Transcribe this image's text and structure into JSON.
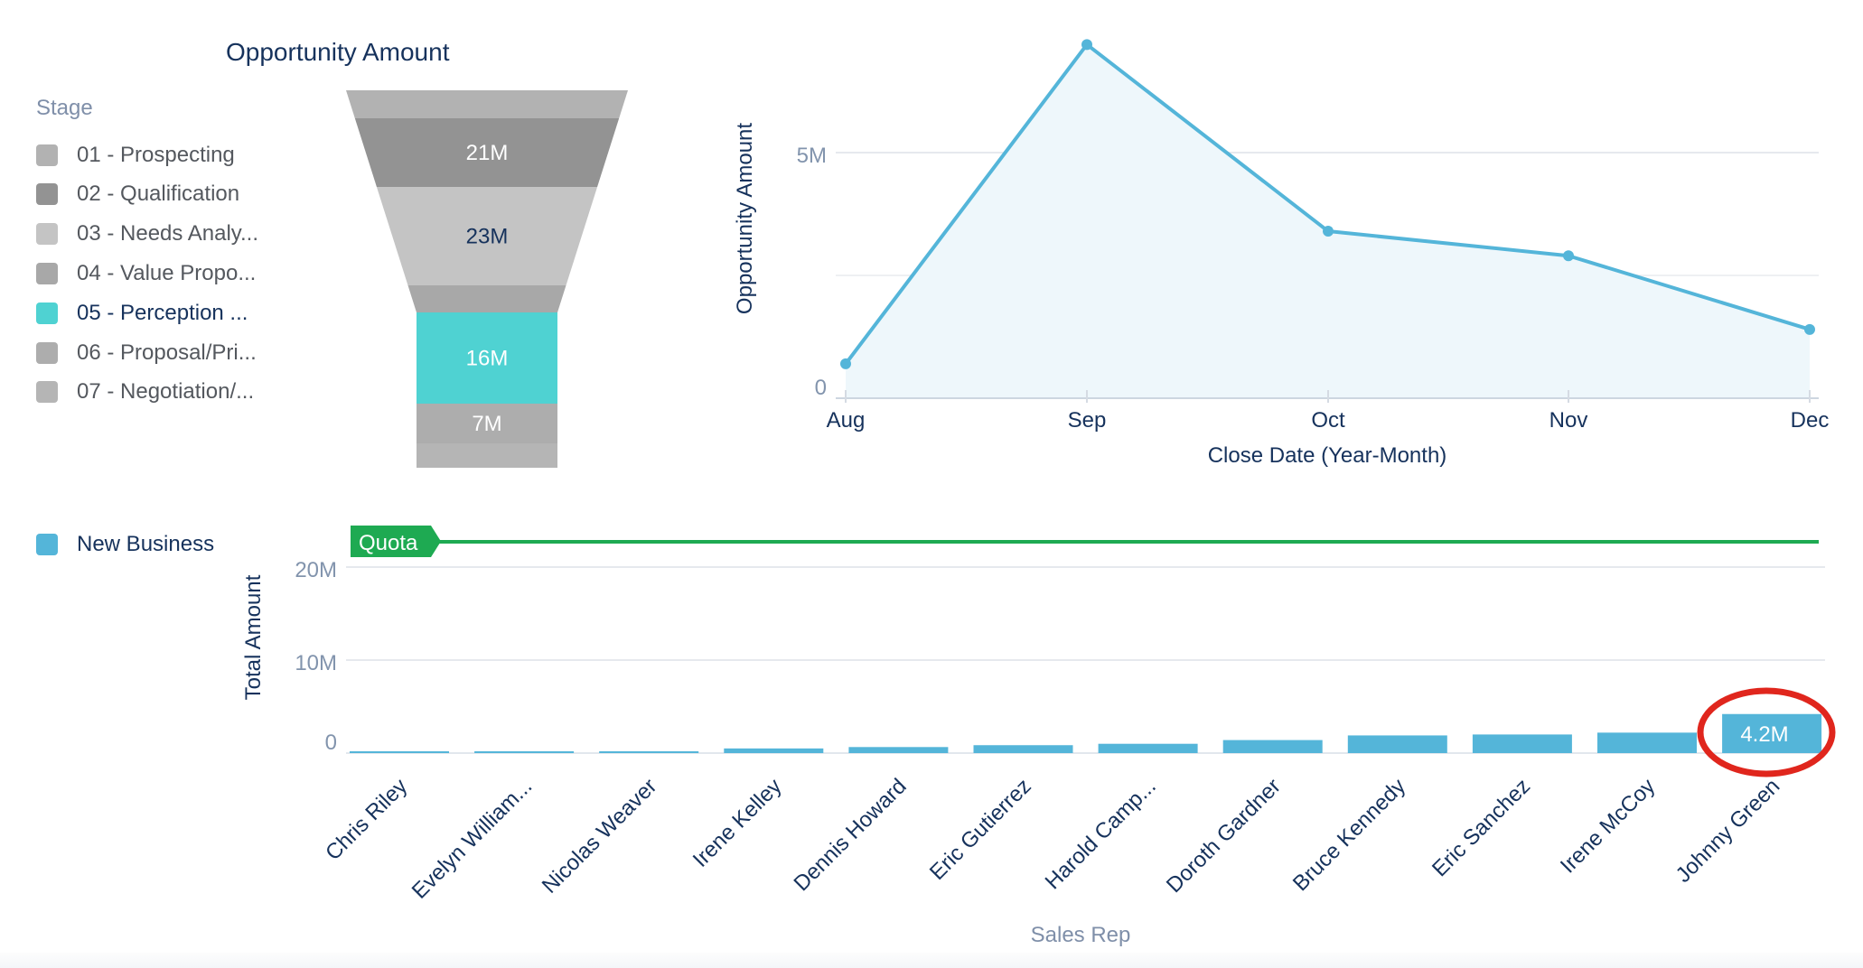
{
  "funnel": {
    "title": "Opportunity Amount",
    "legend_title": "Stage",
    "stages": [
      {
        "label": "01 - Prospecting",
        "color": "#b2b2b2",
        "value_label": "",
        "active": false
      },
      {
        "label": "02 - Qualification",
        "color": "#939393",
        "value_label": "21M",
        "active": false
      },
      {
        "label": "03 - Needs Analy...",
        "color": "#c4c4c4",
        "value_label": "23M",
        "active": false
      },
      {
        "label": "04 - Value Propo...",
        "color": "#a8a8a8",
        "value_label": "",
        "active": false
      },
      {
        "label": "05 - Perception ...",
        "color": "#4fd2d2",
        "value_label": "16M",
        "active": true
      },
      {
        "label": "06 - Proposal/Pri...",
        "color": "#adadad",
        "value_label": "7M",
        "active": false
      },
      {
        "label": "07 - Negotiation/...",
        "color": "#b5b5b5",
        "value_label": "",
        "active": false
      }
    ]
  },
  "line_chart": {
    "y_axis_label": "Opportunity Amount",
    "x_axis_label": "Close Date (Year-Month)",
    "y_ticks": [
      "0",
      "5M"
    ],
    "x_ticks": [
      "Aug",
      "Sep",
      "Oct",
      "Nov",
      "Dec"
    ],
    "line_color": "#54b5d9",
    "fill_color": "#eef7fb"
  },
  "bar_chart": {
    "legend_label": "New Business",
    "legend_color": "#54b5d9",
    "y_axis_label": "Total Amount",
    "x_axis_label": "Sales Rep",
    "y_ticks": [
      "0",
      "10M",
      "20M"
    ],
    "quota_label": "Quota",
    "quota_color": "#1eaa52",
    "highlight_label": "4.2M",
    "highlight_color": "#e0261d"
  },
  "chart_data": [
    {
      "type": "funnel",
      "title": "Opportunity Amount",
      "legend_title": "Stage",
      "categories": [
        "01 - Prospecting",
        "02 - Qualification",
        "03 - Needs Analysis",
        "04 - Value Proposition",
        "05 - Perception Analysis",
        "06 - Proposal/Price Quote",
        "07 - Negotiation/Review"
      ],
      "values": [
        null,
        21,
        23,
        null,
        16,
        7,
        null
      ],
      "value_labels": [
        "",
        "21M",
        "23M",
        "",
        "16M",
        "7M",
        ""
      ],
      "highlighted": "05 - Perception Analysis",
      "units": "M"
    },
    {
      "type": "area",
      "title": "",
      "xlabel": "Close Date (Year-Month)",
      "ylabel": "Opportunity Amount",
      "x": [
        "Aug",
        "Sep",
        "Oct",
        "Nov",
        "Dec"
      ],
      "series": [
        {
          "name": "Opportunity Amount",
          "values": [
            0.7,
            7.2,
            3.4,
            2.9,
            1.4
          ]
        }
      ],
      "units": "M",
      "ylim": [
        0,
        7.5
      ],
      "y_ticks": [
        0,
        5
      ],
      "grid": true
    },
    {
      "type": "bar",
      "title": "",
      "xlabel": "Sales Rep",
      "ylabel": "Total Amount",
      "categories": [
        "Chris Riley",
        "Evelyn William...",
        "Nicolas Weaver",
        "Irene Kelley",
        "Dennis Howard",
        "Eric Gutierrez",
        "Harold Camp...",
        "Doroth Gardner",
        "Bruce Kennedy",
        "Eric Sanchez",
        "Irene McCoy",
        "Johnny Green"
      ],
      "series": [
        {
          "name": "New Business",
          "values": [
            0.05,
            0.15,
            0.15,
            0.5,
            0.65,
            0.85,
            1.0,
            1.4,
            1.9,
            2.0,
            2.2,
            4.2
          ]
        }
      ],
      "units": "M",
      "ylim": [
        0,
        23
      ],
      "y_ticks": [
        0,
        10,
        20
      ],
      "reference_lines": [
        {
          "label": "Quota",
          "value": 22.7,
          "color": "#1eaa52"
        }
      ],
      "data_labels": [
        {
          "category": "Johnny Green",
          "label": "4.2M"
        }
      ],
      "annotations": [
        {
          "type": "ellipse",
          "color": "#e0261d",
          "target": "Johnny Green"
        }
      ],
      "legend": [
        "New Business"
      ],
      "grid": true
    }
  ]
}
